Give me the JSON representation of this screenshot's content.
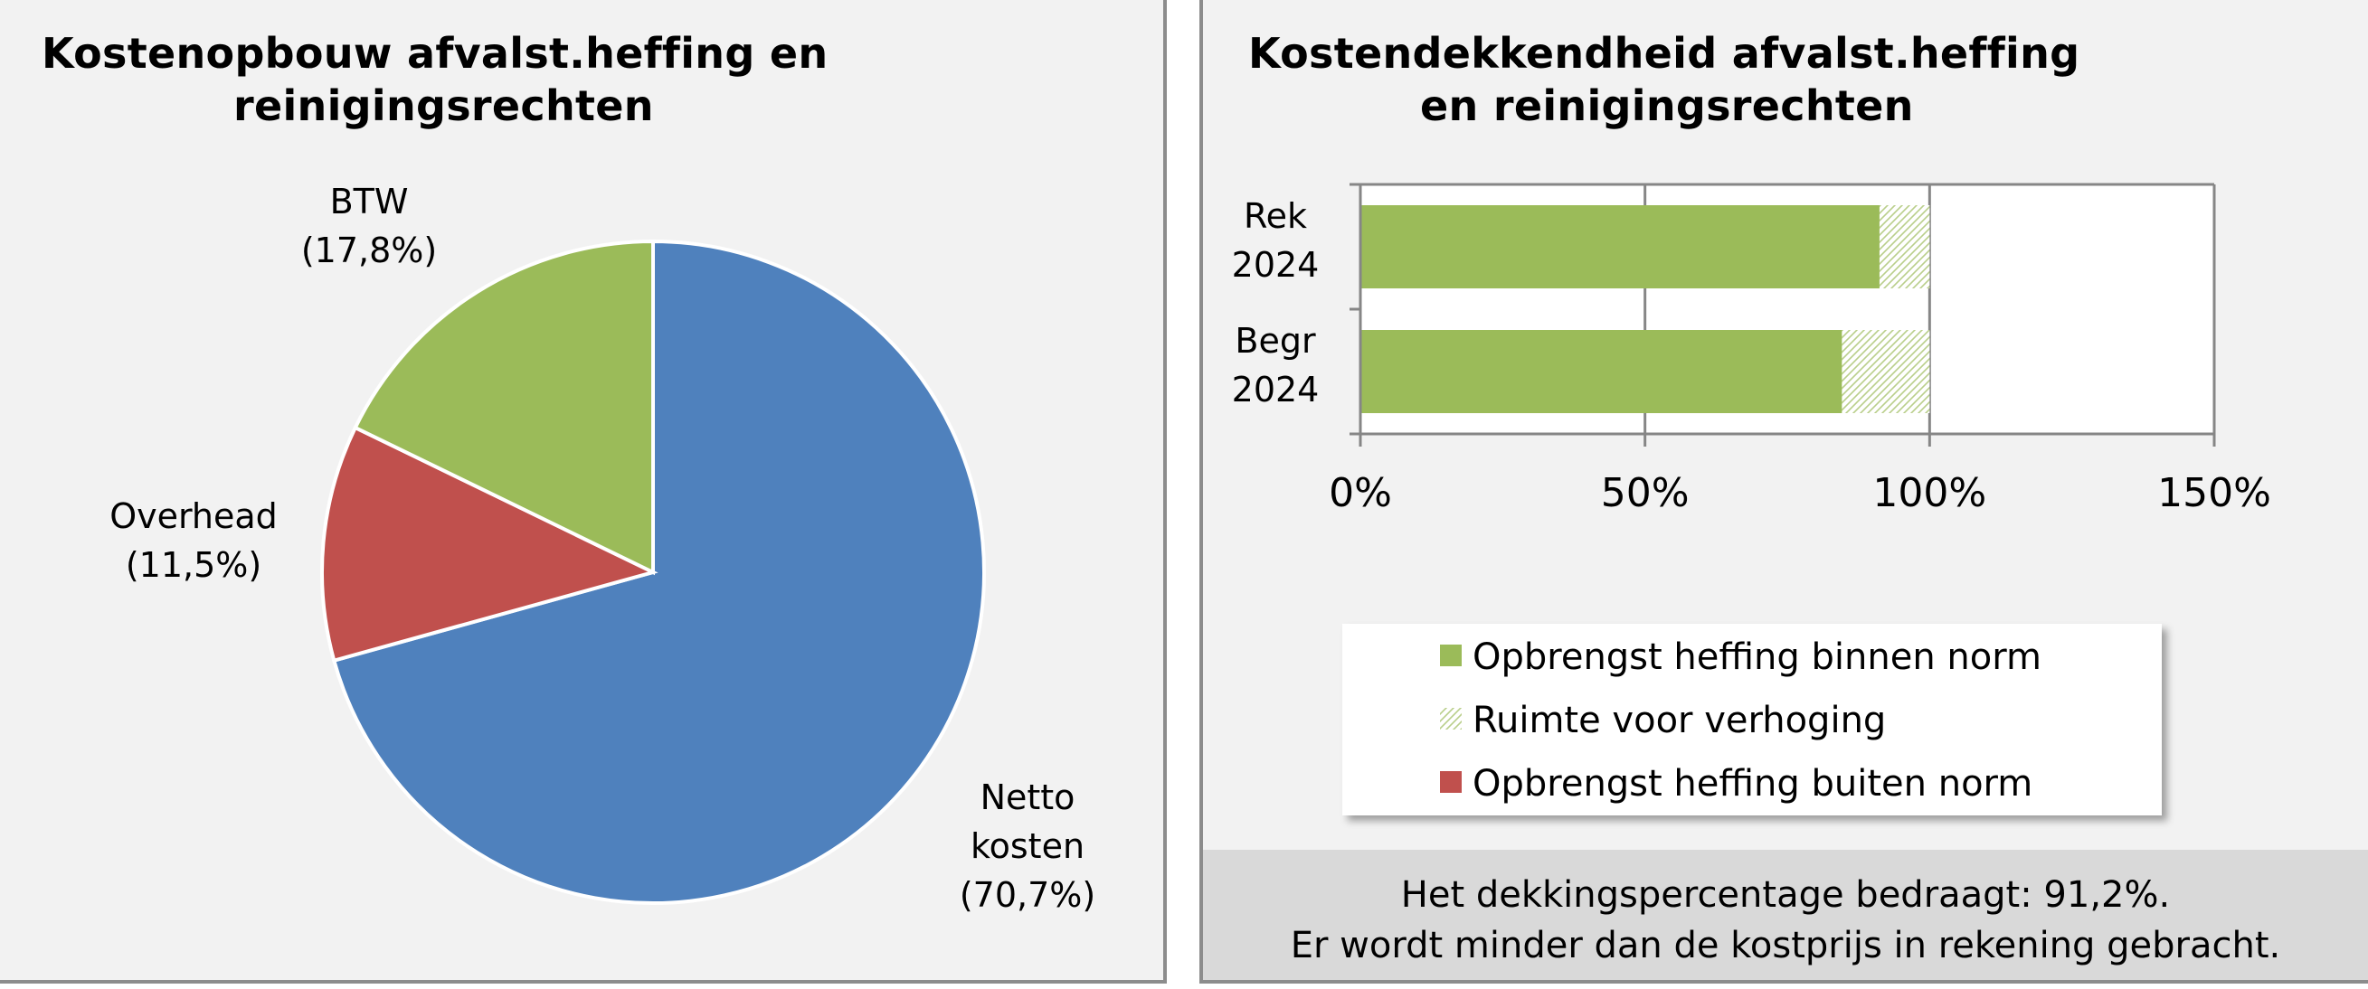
{
  "left_panel": {
    "title_line1": "Kostenopbouw afvalst.heffing  en",
    "title_line2": "reinigingsrechten"
  },
  "right_panel": {
    "title_line1": "Kostendekkendheid afvalst.heffing",
    "title_line2": "en reinigingsrechten",
    "note_line1": "Het dekkingspercentage  bedraagt: 91,2%.",
    "note_line2": "Er wordt minder dan de kostprijs in rekening gebracht."
  },
  "chart_data": [
    {
      "type": "pie",
      "title": "Kostenopbouw afvalst.heffing  en reinigingsrechten",
      "slices": [
        {
          "label_lines": [
            "Netto",
            "kosten",
            "(70,7%)"
          ],
          "value": 70.7,
          "color": "#4f81bd"
        },
        {
          "label_lines": [
            "Overhead",
            "(11,5%)"
          ],
          "value": 11.5,
          "color": "#c0504d"
        },
        {
          "label_lines": [
            "BTW",
            "(17,8%)"
          ],
          "value": 17.8,
          "color": "#9bbb59"
        }
      ]
    },
    {
      "type": "bar",
      "orientation": "horizontal",
      "stacked": true,
      "title": "Kostendekkendheid afvalst.heffing en reinigingsrechten",
      "categories": [
        [
          "Rek",
          "2024"
        ],
        [
          "Begr",
          "2024"
        ]
      ],
      "xlim": [
        0,
        150
      ],
      "xticks": [
        0,
        50,
        100,
        150
      ],
      "xtick_labels": [
        "0%",
        "50%",
        "100%",
        "150%"
      ],
      "grid": true,
      "series": [
        {
          "name": "Opbrengst heffing binnen norm",
          "values": [
            91.2,
            84.6
          ],
          "color": "#9bbb59",
          "pattern": "solid"
        },
        {
          "name": "Ruimte voor verhoging",
          "values": [
            8.8,
            15.4
          ],
          "color": "#9bbb59",
          "pattern": "light-hatch"
        },
        {
          "name": "Opbrengst heffing buiten norm",
          "values": [
            0,
            0
          ],
          "color": "#c0504d",
          "pattern": "solid"
        }
      ],
      "legend": "bottom"
    }
  ]
}
